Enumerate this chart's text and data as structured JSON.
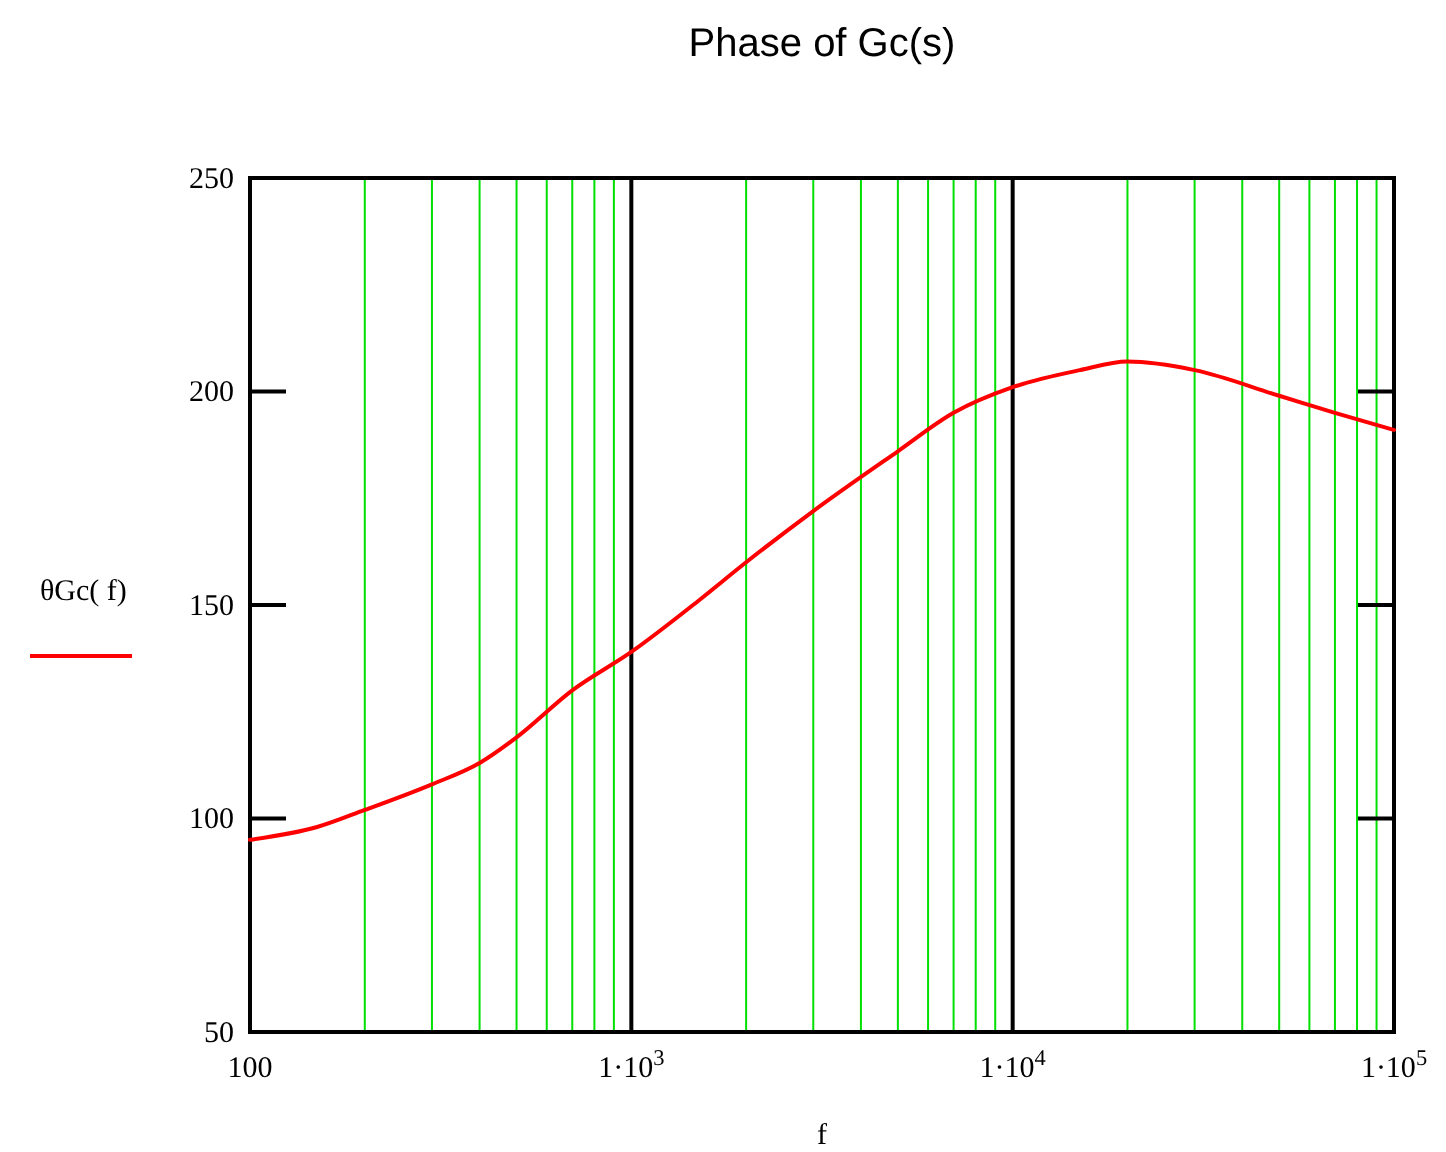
{
  "chart_data": {
    "type": "line",
    "title": "Phase of Gc(s)",
    "xlabel": "f",
    "log": "x",
    "x": [
      100,
      150,
      200,
      300,
      400,
      500,
      700,
      1000,
      1500,
      2000,
      3000,
      5000,
      7000,
      10000,
      15000,
      20000,
      30000,
      50000,
      70000,
      100000
    ],
    "series": [
      {
        "name": "θGc( f)",
        "color": "#ff0000",
        "values": [
          95,
          98,
          102,
          108,
          113,
          119,
          130,
          139,
          151,
          160,
          172,
          186,
          195,
          201,
          205,
          207,
          205,
          199,
          195,
          191
        ]
      }
    ],
    "xlim": [
      100,
      100000
    ],
    "xticks": [
      {
        "value": 100,
        "label": "100"
      },
      {
        "value": 200,
        "label": null
      },
      {
        "value": 300,
        "label": null
      },
      {
        "value": 400,
        "label": null
      },
      {
        "value": 500,
        "label": null
      },
      {
        "value": 600,
        "label": null
      },
      {
        "value": 700,
        "label": null
      },
      {
        "value": 800,
        "label": null
      },
      {
        "value": 900,
        "label": null
      },
      {
        "value": 1000,
        "label": "1·10$^{3}$"
      },
      {
        "value": 2000,
        "label": null
      },
      {
        "value": 3000,
        "label": null
      },
      {
        "value": 4000,
        "label": null
      },
      {
        "value": 5000,
        "label": null
      },
      {
        "value": 6000,
        "label": null
      },
      {
        "value": 7000,
        "label": null
      },
      {
        "value": 8000,
        "label": null
      },
      {
        "value": 9000,
        "label": null
      },
      {
        "value": 10000,
        "label": "1·10$^{4}$"
      },
      {
        "value": 20000,
        "label": null
      },
      {
        "value": 30000,
        "label": null
      },
      {
        "value": 40000,
        "label": null
      },
      {
        "value": 50000,
        "label": null
      },
      {
        "value": 60000,
        "label": null
      },
      {
        "value": 70000,
        "label": null
      },
      {
        "value": 80000,
        "label": null
      },
      {
        "value": 90000,
        "label": null
      },
      {
        "value": 100000,
        "label": "1·10$^{5}$"
      }
    ],
    "ylim": [
      50,
      250
    ],
    "yticks": [
      50,
      100,
      150,
      200,
      250
    ],
    "grid": "x",
    "legend": "left",
    "line_style": "solid",
    "marker": "none"
  }
}
